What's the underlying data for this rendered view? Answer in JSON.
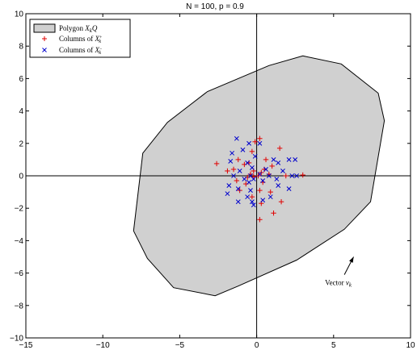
{
  "chart_data": {
    "type": "scatter",
    "title": "N = 100, p = 0.9",
    "xlim": [
      -15,
      10
    ],
    "ylim": [
      -10,
      10
    ],
    "xticks": [
      -15,
      -10,
      -5,
      0,
      5,
      10
    ],
    "yticks": [
      -10,
      -8,
      -6,
      -4,
      -2,
      0,
      2,
      4,
      6,
      8,
      10
    ],
    "grid": false,
    "legend_position": "top-left",
    "polygon": {
      "label": "Polygon X_kQ",
      "fill": "#d0d0d0",
      "points": [
        [
          3,
          7.4
        ],
        [
          5.5,
          6.9
        ],
        [
          7.9,
          5.1
        ],
        [
          8.3,
          3.4
        ],
        [
          7.4,
          -1.6
        ],
        [
          5.7,
          -3.3
        ],
        [
          2.6,
          -5.2
        ],
        [
          -1.2,
          -6.8
        ],
        [
          -2.7,
          -7.4
        ],
        [
          -5.4,
          -6.9
        ],
        [
          -7.1,
          -5.1
        ],
        [
          -8,
          -3.4
        ],
        [
          -7.4,
          1.4
        ],
        [
          -5.8,
          3.3
        ],
        [
          -3.2,
          5.2
        ],
        [
          0.8,
          6.8
        ]
      ]
    },
    "series": [
      {
        "name": "Columns of X_k^+",
        "marker": "+",
        "color": "#e00000",
        "points": [
          [
            -0.1,
            2.1
          ],
          [
            0.2,
            2.3
          ],
          [
            -0.3,
            1.5
          ],
          [
            1.5,
            1.7
          ],
          [
            -1.2,
            1.0
          ],
          [
            -0.8,
            0.7
          ],
          [
            -1.5,
            0.4
          ],
          [
            -2.6,
            0.75
          ],
          [
            -0.2,
            0.3
          ],
          [
            0.5,
            0.4
          ],
          [
            1.0,
            0.6
          ],
          [
            -0.4,
            0.1
          ],
          [
            0.3,
            0.2
          ],
          [
            0.8,
            0.1
          ],
          [
            3.0,
            0.05
          ],
          [
            -0.6,
            -0.1
          ],
          [
            -0.2,
            -0.05
          ],
          [
            0.1,
            0.0
          ],
          [
            1.9,
            0.0
          ],
          [
            -1.3,
            -0.3
          ],
          [
            -0.7,
            -0.5
          ],
          [
            0.4,
            -0.4
          ],
          [
            -1.1,
            -0.9
          ],
          [
            0.2,
            -0.9
          ],
          [
            0.9,
            -1.0
          ],
          [
            -0.3,
            -1.3
          ],
          [
            1.6,
            -1.6
          ],
          [
            0.3,
            -1.7
          ],
          [
            1.1,
            -2.3
          ],
          [
            0.2,
            -2.7
          ],
          [
            -0.5,
            0.8
          ],
          [
            0.6,
            1.0
          ],
          [
            -1.9,
            0.3
          ]
        ]
      },
      {
        "name": "Columns of X_k^-",
        "marker": "x",
        "color": "#0000cc",
        "points": [
          [
            -1.3,
            2.3
          ],
          [
            -0.5,
            2.0
          ],
          [
            0.2,
            2.0
          ],
          [
            -1.6,
            1.4
          ],
          [
            -0.9,
            1.6
          ],
          [
            -0.1,
            1.2
          ],
          [
            -1.7,
            0.9
          ],
          [
            -0.6,
            0.8
          ],
          [
            1.1,
            1.0
          ],
          [
            2.1,
            1.0
          ],
          [
            2.5,
            1.0
          ],
          [
            1.4,
            0.8
          ],
          [
            -0.3,
            0.5
          ],
          [
            0.6,
            0.4
          ],
          [
            -1.1,
            0.3
          ],
          [
            1.7,
            0.3
          ],
          [
            -1.5,
            0.0
          ],
          [
            -0.4,
            0.0
          ],
          [
            0.2,
            0.1
          ],
          [
            0.8,
            0.0
          ],
          [
            2.3,
            0.0
          ],
          [
            2.6,
            0.0
          ],
          [
            -0.8,
            -0.2
          ],
          [
            -0.2,
            -0.2
          ],
          [
            0.4,
            -0.3
          ],
          [
            1.3,
            -0.2
          ],
          [
            -1.8,
            -0.6
          ],
          [
            -0.5,
            -0.4
          ],
          [
            1.4,
            -0.6
          ],
          [
            -1.2,
            -0.8
          ],
          [
            -0.4,
            -0.9
          ],
          [
            2.1,
            -0.8
          ],
          [
            -1.9,
            -1.1
          ],
          [
            -0.6,
            -1.3
          ],
          [
            0.9,
            -1.3
          ],
          [
            -0.3,
            -1.6
          ],
          [
            -1.2,
            -1.6
          ],
          [
            0.4,
            -1.5
          ],
          [
            -0.2,
            -1.8
          ]
        ]
      }
    ],
    "annotation": {
      "text": "Vector v_k",
      "arrow_from": [
        5.7,
        -6.1
      ],
      "arrow_to": [
        6.3,
        -5.0
      ]
    }
  }
}
